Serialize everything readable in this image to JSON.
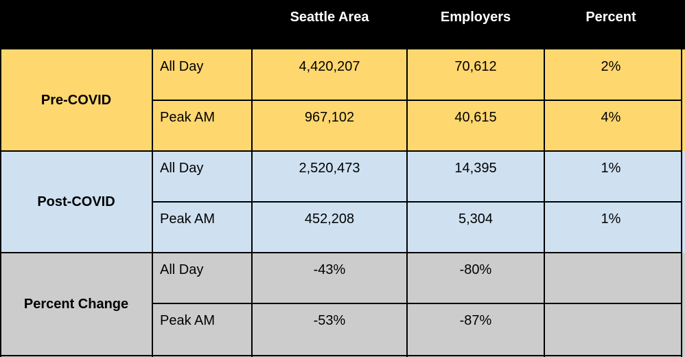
{
  "colors": {
    "header_bg": "#000000",
    "pre_covid_bg": "#FFD76F",
    "post_covid_bg": "#CFE1F1",
    "percent_change_bg": "#CCCCCC"
  },
  "headers": [
    "",
    "",
    "Seattle Area",
    "Employers",
    "Percent"
  ],
  "groups": [
    {
      "label": "Pre-COVID",
      "rows": [
        {
          "sub": "All Day",
          "seattle": "4,420,207",
          "employers": "70,612",
          "percent": "2%"
        },
        {
          "sub": "Peak AM",
          "seattle": "967,102",
          "employers": "40,615",
          "percent": "4%"
        }
      ]
    },
    {
      "label": "Post-COVID",
      "rows": [
        {
          "sub": "All Day",
          "seattle": "2,520,473",
          "employers": "14,395",
          "percent": "1%"
        },
        {
          "sub": "Peak AM",
          "seattle": "452,208",
          "employers": "5,304",
          "percent": "1%"
        }
      ]
    },
    {
      "label": "Percent Change",
      "rows": [
        {
          "sub": "All Day",
          "seattle": "-43%",
          "employers": "-80%",
          "percent": ""
        },
        {
          "sub": "Peak AM",
          "seattle": "-53%",
          "employers": "-87%",
          "percent": ""
        }
      ]
    }
  ]
}
